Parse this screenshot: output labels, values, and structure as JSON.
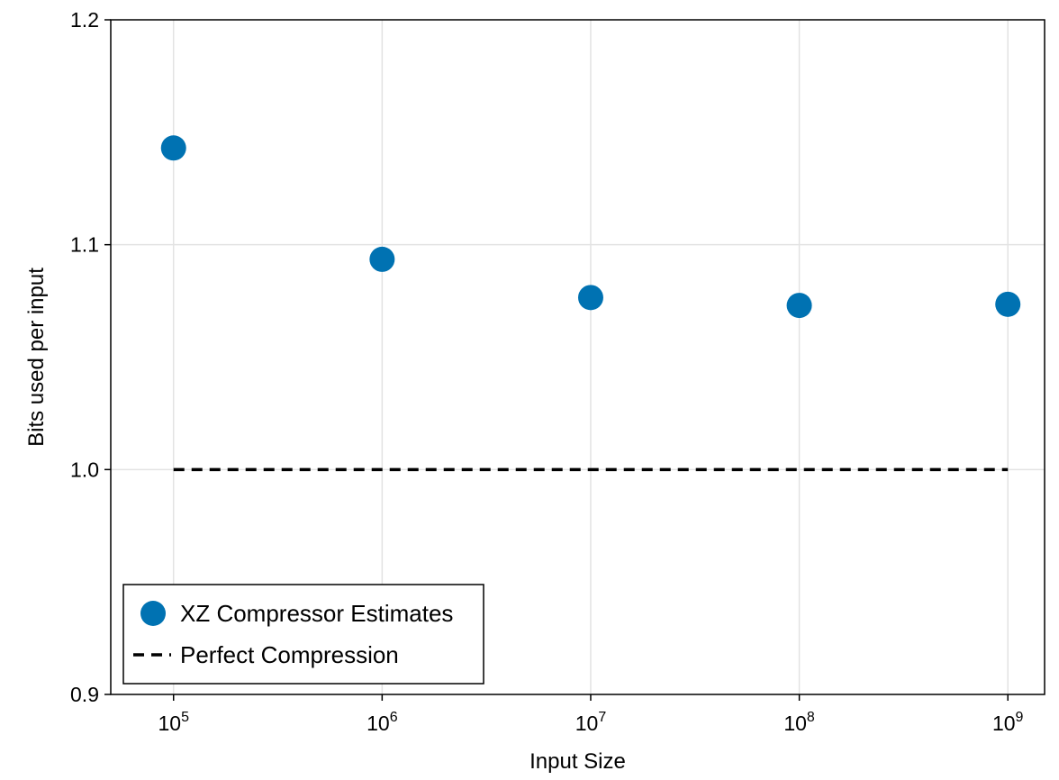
{
  "chart_data": {
    "type": "scatter",
    "title": "",
    "xlabel": "Input Size",
    "ylabel": "Bits used per input",
    "x_scale": "log10",
    "xlim": [
      50000,
      1500000000
    ],
    "ylim": [
      0.9,
      1.2
    ],
    "x_ticks": [
      {
        "value": 100000,
        "base": "10",
        "exp": "5"
      },
      {
        "value": 1000000,
        "base": "10",
        "exp": "6"
      },
      {
        "value": 10000000,
        "base": "10",
        "exp": "7"
      },
      {
        "value": 100000000,
        "base": "10",
        "exp": "8"
      },
      {
        "value": 1000000000,
        "base": "10",
        "exp": "9"
      }
    ],
    "y_ticks": [
      {
        "value": 0.9,
        "label": "0.9"
      },
      {
        "value": 1.0,
        "label": "1.0"
      },
      {
        "value": 1.1,
        "label": "1.1"
      },
      {
        "value": 1.2,
        "label": "1.2"
      }
    ],
    "grid": true,
    "legend_position": "bottom-left",
    "series": [
      {
        "name": "XZ Compressor Estimates",
        "kind": "scatter",
        "color": "#0072b2",
        "x": [
          100000,
          1000000,
          10000000,
          100000000,
          1000000000
        ],
        "y": [
          1.143,
          1.0935,
          1.0765,
          1.073,
          1.0735
        ]
      },
      {
        "name": "Perfect Compression",
        "kind": "dashed-line",
        "color": "#000000",
        "x": [
          100000,
          1000000000
        ],
        "y": [
          1.0,
          1.0
        ]
      }
    ]
  }
}
